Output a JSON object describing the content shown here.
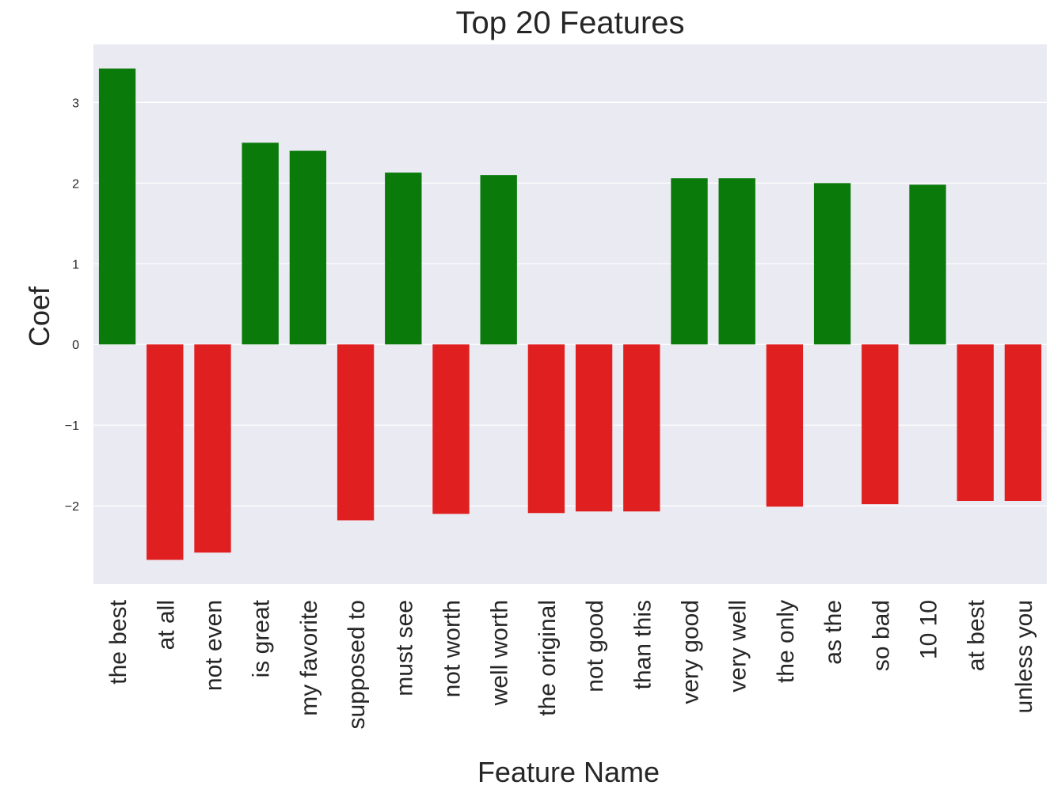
{
  "chart_data": {
    "type": "bar",
    "title": "Top 20 Features",
    "xlabel": "Feature Name",
    "ylabel": "Coef",
    "categories": [
      "the best",
      "at all",
      "not even",
      "is great",
      "my favorite",
      "supposed to",
      "must see",
      "not worth",
      "well worth",
      "the original",
      "not good",
      "than this",
      "very good",
      "very well",
      "the only",
      "as the",
      "so bad",
      "10 10",
      "at best",
      "unless you"
    ],
    "values": [
      3.42,
      -2.67,
      -2.58,
      2.5,
      2.4,
      -2.18,
      2.13,
      -2.1,
      2.1,
      -2.09,
      -2.07,
      -2.07,
      2.06,
      2.06,
      -2.01,
      2.0,
      -1.98,
      1.98,
      -1.94,
      -1.94
    ],
    "ylim": [
      -2.97,
      3.72
    ],
    "yticks": [
      3,
      2,
      1,
      0,
      -1,
      -2
    ],
    "ytick_labels": [
      "3",
      "2",
      "1",
      "0",
      "−1",
      "−2"
    ],
    "grid": true,
    "colors": {
      "positive": "#0a7a0a",
      "negative": "#e02020",
      "plot_background": "#eaeaf2",
      "grid": "#ffffff",
      "text": "#262626"
    }
  }
}
